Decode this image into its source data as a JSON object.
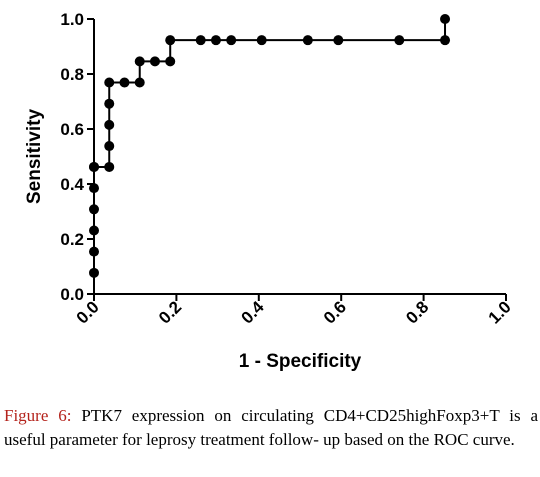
{
  "chart_data": {
    "type": "line",
    "xlabel": "1 - Specificity",
    "ylabel": "Sensitivity",
    "xlim": [
      0.0,
      1.0
    ],
    "ylim": [
      0.0,
      1.0
    ],
    "x_ticks": [
      "0.0",
      "0.2",
      "0.4",
      "0.6",
      "0.8",
      "1.0"
    ],
    "y_ticks": [
      "0.0",
      "0.2",
      "0.4",
      "0.6",
      "0.8",
      "1.0"
    ],
    "grid": false,
    "line_color": "#000000",
    "marker": "filled-circle",
    "series": [
      {
        "x": [
          0.0,
          0.0,
          0.0,
          0.0,
          0.0,
          0.0,
          0.0,
          0.037,
          0.037,
          0.037,
          0.037,
          0.037,
          0.074,
          0.111,
          0.111,
          0.148,
          0.185,
          0.185,
          0.259,
          0.296,
          0.333,
          0.407,
          0.519,
          0.593,
          0.741,
          0.852,
          0.852
        ],
        "y": [
          0.077,
          0.154,
          0.231,
          0.308,
          0.385,
          0.462,
          0.462,
          0.462,
          0.538,
          0.615,
          0.692,
          0.769,
          0.769,
          0.769,
          0.846,
          0.846,
          0.846,
          0.923,
          0.923,
          0.923,
          0.923,
          0.923,
          0.923,
          0.923,
          0.923,
          0.923,
          1.0
        ]
      }
    ]
  },
  "caption": {
    "label": "Figure 6:",
    "text": " PTK7 expression on circulating CD4+CD25highFoxp3+T is a useful parameter for leprosy treatment follow- up based on the ROC curve."
  }
}
